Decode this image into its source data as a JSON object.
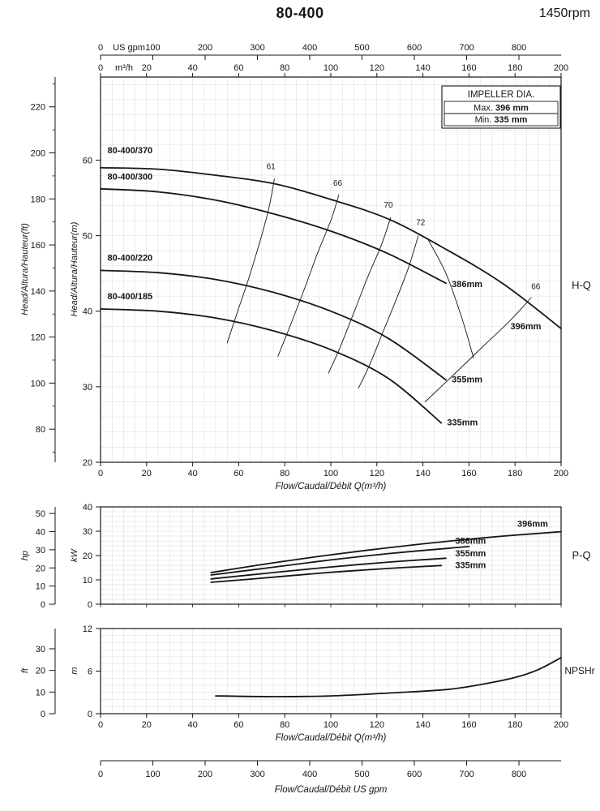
{
  "header": {
    "title": "80-400",
    "rpm": "1450rpm"
  },
  "chart_data": [
    {
      "id": "hq",
      "type": "line",
      "title_right": "H-Q",
      "x": {
        "label": "Flow/Caudal/Débit Q(m³/h)",
        "min": 0,
        "max": 200,
        "ticks": [
          0,
          20,
          40,
          60,
          80,
          100,
          120,
          140,
          160,
          180,
          200
        ]
      },
      "x_top_m3h": {
        "unit": "m³/h",
        "ticks": [
          0,
          20,
          40,
          60,
          80,
          100,
          120,
          140,
          160,
          180,
          200
        ]
      },
      "x_top_usgpm": {
        "unit": "US gpm",
        "ticks": [
          0,
          100,
          200,
          300,
          400,
          500,
          600,
          700,
          800
        ]
      },
      "y_inner": {
        "label": "Head/Altura/Hauteur(m)",
        "min": 20,
        "max": 71,
        "ticks": [
          20,
          30,
          40,
          50,
          60
        ]
      },
      "y_outer": {
        "label": "Head/Altura/Hauteur(ft)",
        "ticks": [
          80,
          100,
          120,
          140,
          160,
          180,
          200,
          220
        ]
      },
      "legend": {
        "title": "IMPELLER DIA.",
        "rows": [
          {
            "label": "Max.",
            "value": "396 mm"
          },
          {
            "label": "Min.",
            "value": "335 mm"
          }
        ]
      },
      "curves": [
        {
          "model": "80-400/370",
          "impeller": "396mm",
          "points": [
            [
              0,
              59
            ],
            [
              25,
              58.8
            ],
            [
              50,
              58
            ],
            [
              75,
              56.9
            ],
            [
              100,
              54.8
            ],
            [
              125,
              52.2
            ],
            [
              150,
              48.2
            ],
            [
              175,
              43.6
            ],
            [
              200,
              37.7
            ]
          ],
          "model_label_at": [
            3,
            60.9
          ],
          "end_label": "396mm",
          "end_label_at": [
            178,
            37.6
          ]
        },
        {
          "model": "80-400/300",
          "impeller": "386mm",
          "points": [
            [
              0,
              56.2
            ],
            [
              25,
              55.8
            ],
            [
              50,
              54.7
            ],
            [
              75,
              52.9
            ],
            [
              100,
              50.6
            ],
            [
              125,
              47.6
            ],
            [
              150,
              43.7
            ]
          ],
          "model_label_at": [
            3,
            57.4
          ],
          "end_label": "386mm",
          "end_label_at": [
            152.5,
            43.2
          ]
        },
        {
          "model": "80-400/220",
          "impeller": "355mm",
          "points": [
            [
              0,
              45.4
            ],
            [
              25,
              45.1
            ],
            [
              50,
              44.2
            ],
            [
              75,
              42.5
            ],
            [
              100,
              40
            ],
            [
              125,
              36.4
            ],
            [
              150,
              30.9
            ]
          ],
          "model_label_at": [
            3,
            46.7
          ],
          "end_label": "355mm",
          "end_label_at": [
            152.5,
            30.6
          ]
        },
        {
          "model": "80-400/185",
          "impeller": "335mm",
          "points": [
            [
              0,
              40.3
            ],
            [
              25,
              40
            ],
            [
              50,
              39.1
            ],
            [
              75,
              37.4
            ],
            [
              100,
              34.9
            ],
            [
              125,
              31.1
            ],
            [
              148,
              25.2
            ]
          ],
          "model_label_at": [
            3,
            41.6
          ],
          "end_label": "335mm",
          "end_label_at": [
            150.5,
            24.9
          ]
        }
      ],
      "efficiency": [
        {
          "id": "eff-61",
          "label": "61",
          "points": [
            [
              55,
              35.8
            ],
            [
              59,
              39.5
            ],
            [
              64,
              44
            ],
            [
              69,
              49
            ],
            [
              73,
              53.5
            ],
            [
              75.5,
              57.5
            ]
          ],
          "label_at": [
            74,
            58.8
          ]
        },
        {
          "id": "eff-66",
          "label": "66",
          "points": [
            [
              77,
              34
            ],
            [
              82,
              37.8
            ],
            [
              88,
              42.5
            ],
            [
              94,
              47.5
            ],
            [
              100,
              52
            ],
            [
              103.5,
              55.4
            ]
          ],
          "label_at": [
            103,
            56.6
          ]
        },
        {
          "id": "eff-70",
          "label": "70",
          "points": [
            [
              99,
              31.8
            ],
            [
              104,
              35.2
            ],
            [
              110,
              39.8
            ],
            [
              116,
              44.5
            ],
            [
              122,
              48.8
            ],
            [
              126,
              52.4
            ]
          ],
          "label_at": [
            125,
            53.7
          ]
        },
        {
          "id": "eff-72",
          "label": "72",
          "points": [
            [
              112,
              29.8
            ],
            [
              117,
              33
            ],
            [
              123,
              37.5
            ],
            [
              129,
              42
            ],
            [
              134,
              46
            ],
            [
              138,
              50
            ]
          ],
          "label_at": [
            139,
            51.4
          ]
        },
        {
          "id": "eff-72-right",
          "label": "",
          "points": [
            [
              142,
              49.6
            ],
            [
              150,
              45
            ],
            [
              157,
              39
            ],
            [
              162,
              33.8
            ]
          ],
          "label_at": null
        },
        {
          "id": "eff-66-right",
          "label": "66",
          "points": [
            [
              141,
              28
            ],
            [
              152,
              31.2
            ],
            [
              166,
              35.3
            ],
            [
              178,
              38.8
            ],
            [
              187,
              41.8
            ]
          ],
          "label_at": [
            189,
            42.9
          ]
        }
      ]
    },
    {
      "id": "pq",
      "type": "line",
      "title_right": "P-Q",
      "y_inner": {
        "label": "kW",
        "min": 0,
        "max": 40,
        "ticks": [
          0,
          10,
          20,
          30,
          40
        ]
      },
      "y_outer": {
        "label": "hp",
        "ticks": [
          0,
          10,
          20,
          30,
          40,
          50
        ]
      },
      "curves": [
        {
          "impeller": "396mm",
          "points": [
            [
              48,
              13
            ],
            [
              75,
              17
            ],
            [
              100,
              20.3
            ],
            [
              125,
              23.2
            ],
            [
              150,
              25.8
            ],
            [
              175,
              28
            ],
            [
              200,
              29.8
            ]
          ],
          "end_label_at": [
            181,
            31.8
          ]
        },
        {
          "impeller": "386mm",
          "points": [
            [
              48,
              12
            ],
            [
              75,
              15.2
            ],
            [
              100,
              18.2
            ],
            [
              125,
              20.8
            ],
            [
              150,
              22.9
            ],
            [
              160,
              23.7
            ]
          ],
          "end_label_at": [
            154,
            24.8
          ]
        },
        {
          "impeller": "355mm",
          "points": [
            [
              48,
              10.4
            ],
            [
              75,
              13
            ],
            [
              100,
              15.3
            ],
            [
              125,
              17.3
            ],
            [
              150,
              18.9
            ]
          ],
          "end_label_at": [
            154,
            19.6
          ]
        },
        {
          "impeller": "335mm",
          "points": [
            [
              48,
              9
            ],
            [
              75,
              11.1
            ],
            [
              100,
              13.1
            ],
            [
              125,
              14.7
            ],
            [
              148,
              15.9
            ]
          ],
          "end_label_at": [
            154,
            14.9
          ]
        }
      ]
    },
    {
      "id": "npshr",
      "type": "line",
      "title_right": "NPSHr",
      "x": {
        "label": "Flow/Caudal/Débit Q(m³/h)",
        "min": 0,
        "max": 200,
        "ticks": [
          0,
          20,
          40,
          60,
          80,
          100,
          120,
          140,
          160,
          180,
          200
        ]
      },
      "y_inner": {
        "label": "m",
        "min": 0,
        "max": 12,
        "ticks": [
          0,
          6,
          12
        ]
      },
      "y_outer": {
        "label": "ft",
        "ticks": [
          0,
          10,
          20,
          30
        ]
      },
      "curves": [
        {
          "impeller": "",
          "points": [
            [
              50,
              2.5
            ],
            [
              75,
              2.4
            ],
            [
              100,
              2.5
            ],
            [
              125,
              2.9
            ],
            [
              150,
              3.4
            ],
            [
              165,
              4.1
            ],
            [
              180,
              5.1
            ],
            [
              190,
              6.2
            ],
            [
              200,
              7.9
            ]
          ],
          "end_label_at": null
        }
      ]
    }
  ],
  "bottom_axis": {
    "unit": "US gpm",
    "label": "Flow/Caudal/Débit  US gpm",
    "ticks": [
      0,
      100,
      200,
      300,
      400,
      500,
      600,
      700,
      800
    ]
  }
}
